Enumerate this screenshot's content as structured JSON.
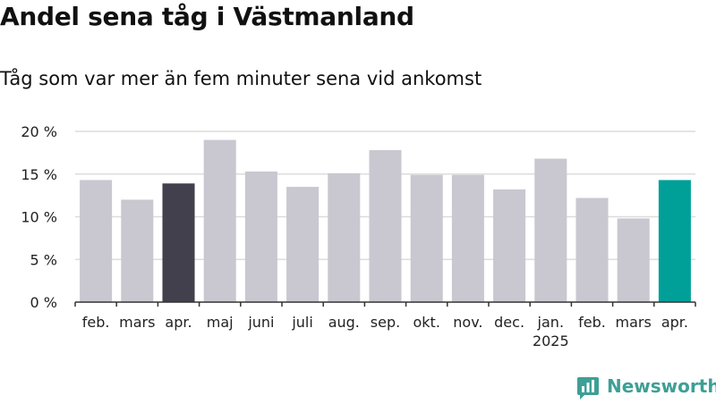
{
  "title": "Andel sena tåg i Västmanland",
  "subtitle": "Tåg som var mer än fem minuter sena vid ankomst",
  "brand": {
    "name": "Newsworthy",
    "icon": "bar-chart-speech-bubble-icon",
    "color": "#3e9f95"
  },
  "colors": {
    "default": "#c9c7d0",
    "highlight_prev": "#41404c",
    "highlight_current": "#00a099",
    "grid": "#dcdcdc",
    "axis": "#333333"
  },
  "chart_data": {
    "type": "bar",
    "title": "Andel sena tåg i Västmanland",
    "subtitle": "Tåg som var mer än fem minuter sena vid ankomst",
    "categories": [
      "feb.",
      "mars",
      "apr.",
      "maj",
      "juni",
      "juli",
      "aug.",
      "sep.",
      "okt.",
      "nov.",
      "dec.",
      "jan.",
      "feb.",
      "mars",
      "apr."
    ],
    "category_sublabels": [
      "",
      "",
      "",
      "",
      "",
      "",
      "",
      "",
      "",
      "",
      "",
      "2025",
      "",
      "",
      ""
    ],
    "values": [
      14.3,
      12.0,
      13.9,
      19.0,
      15.3,
      13.5,
      15.1,
      17.8,
      14.9,
      14.9,
      13.2,
      16.8,
      12.2,
      9.8,
      14.3
    ],
    "bar_colors": [
      "default",
      "default",
      "highlight_prev",
      "default",
      "default",
      "default",
      "default",
      "default",
      "default",
      "default",
      "default",
      "default",
      "default",
      "default",
      "highlight_current"
    ],
    "ylim": [
      0,
      20
    ],
    "yticks": [
      0,
      5,
      10,
      15,
      20
    ],
    "ytick_labels": [
      "0 %",
      "5 %",
      "10 %",
      "15 %",
      "20 %"
    ],
    "xlabel": "",
    "ylabel": "",
    "grid": true
  }
}
